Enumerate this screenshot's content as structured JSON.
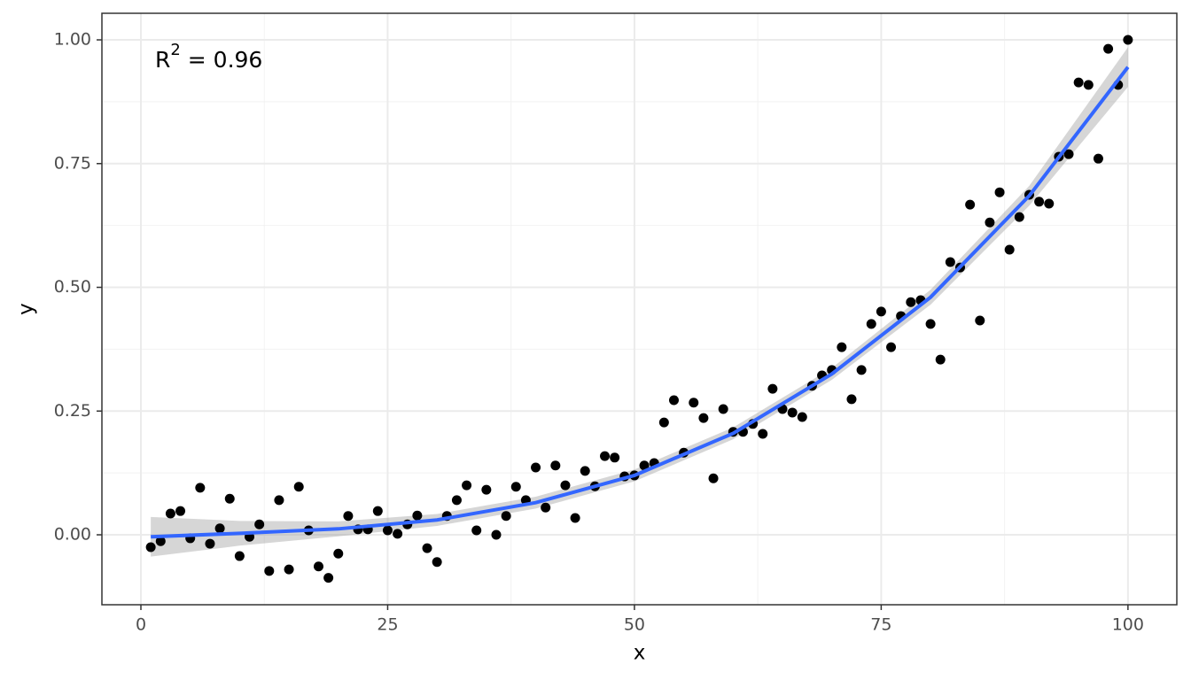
{
  "chart_data": {
    "type": "scatter",
    "x_label": "x",
    "y_label": "y",
    "annotation": {
      "base": "R",
      "sup": "2",
      "rest": " = 0.96"
    },
    "x": [
      1,
      2,
      3,
      4,
      5,
      6,
      7,
      8,
      9,
      10,
      11,
      12,
      13,
      14,
      15,
      16,
      17,
      18,
      19,
      20,
      21,
      22,
      23,
      24,
      25,
      26,
      27,
      28,
      29,
      30,
      31,
      32,
      33,
      34,
      35,
      36,
      37,
      38,
      39,
      40,
      41,
      42,
      43,
      44,
      45,
      46,
      47,
      48,
      49,
      50,
      51,
      52,
      53,
      54,
      55,
      56,
      57,
      58,
      59,
      60,
      61,
      62,
      63,
      64,
      65,
      66,
      67,
      68,
      69,
      70,
      71,
      72,
      73,
      74,
      75,
      76,
      77,
      78,
      79,
      80,
      81,
      82,
      83,
      84,
      85,
      86,
      87,
      88,
      89,
      90,
      91,
      92,
      93,
      94,
      95,
      96,
      97,
      98,
      99,
      100
    ],
    "y": [
      -0.025,
      -0.013,
      0.043,
      0.048,
      -0.007,
      0.095,
      -0.018,
      0.013,
      0.073,
      -0.043,
      -0.004,
      0.021,
      -0.073,
      0.07,
      -0.07,
      0.097,
      0.009,
      -0.064,
      -0.087,
      -0.038,
      0.038,
      0.011,
      0.011,
      0.048,
      0.009,
      0.002,
      0.021,
      0.039,
      -0.027,
      -0.055,
      0.038,
      0.07,
      0.1,
      0.009,
      0.091,
      0.0,
      0.038,
      0.097,
      0.07,
      0.136,
      0.055,
      0.14,
      0.1,
      0.034,
      0.129,
      0.098,
      0.159,
      0.156,
      0.118,
      0.12,
      0.14,
      0.145,
      0.227,
      0.272,
      0.166,
      0.267,
      0.236,
      0.114,
      0.254,
      0.208,
      0.208,
      0.224,
      0.204,
      0.295,
      0.254,
      0.247,
      0.238,
      0.301,
      0.322,
      0.333,
      0.379,
      0.274,
      0.333,
      0.426,
      0.451,
      0.379,
      0.442,
      0.47,
      0.474,
      0.426,
      0.354,
      0.551,
      0.54,
      0.667,
      0.433,
      0.631,
      0.692,
      0.576,
      0.642,
      0.687,
      0.673,
      0.669,
      0.764,
      0.769,
      0.914,
      0.909,
      0.76,
      0.982,
      0.909,
      1.0
    ],
    "color": "#000000",
    "smooth": {
      "color": "#3366ff",
      "band_color": "#999999",
      "x": [
        1,
        10,
        20,
        30,
        40,
        50,
        60,
        70,
        80,
        90,
        100
      ],
      "y": [
        -0.004,
        0.003,
        0.012,
        0.03,
        0.065,
        0.12,
        0.205,
        0.325,
        0.48,
        0.685,
        0.945
      ],
      "lower": [
        -0.044,
        -0.022,
        -0.003,
        0.018,
        0.053,
        0.108,
        0.193,
        0.313,
        0.465,
        0.665,
        0.905
      ],
      "upper": [
        0.036,
        0.028,
        0.027,
        0.042,
        0.077,
        0.132,
        0.217,
        0.337,
        0.495,
        0.705,
        0.985
      ]
    },
    "xlim": [
      -3.95,
      104.95
    ],
    "ylim": [
      -0.1413,
      1.0537
    ],
    "xticks": [
      0,
      25,
      50,
      75,
      100
    ],
    "yticks": [
      {
        "value": 0,
        "label": "0.00"
      },
      {
        "value": 0.25,
        "label": "0.25"
      },
      {
        "value": 0.5,
        "label": "0.50"
      },
      {
        "value": 0.75,
        "label": "0.75"
      },
      {
        "value": 1,
        "label": "1.00"
      }
    ],
    "grid": true
  }
}
